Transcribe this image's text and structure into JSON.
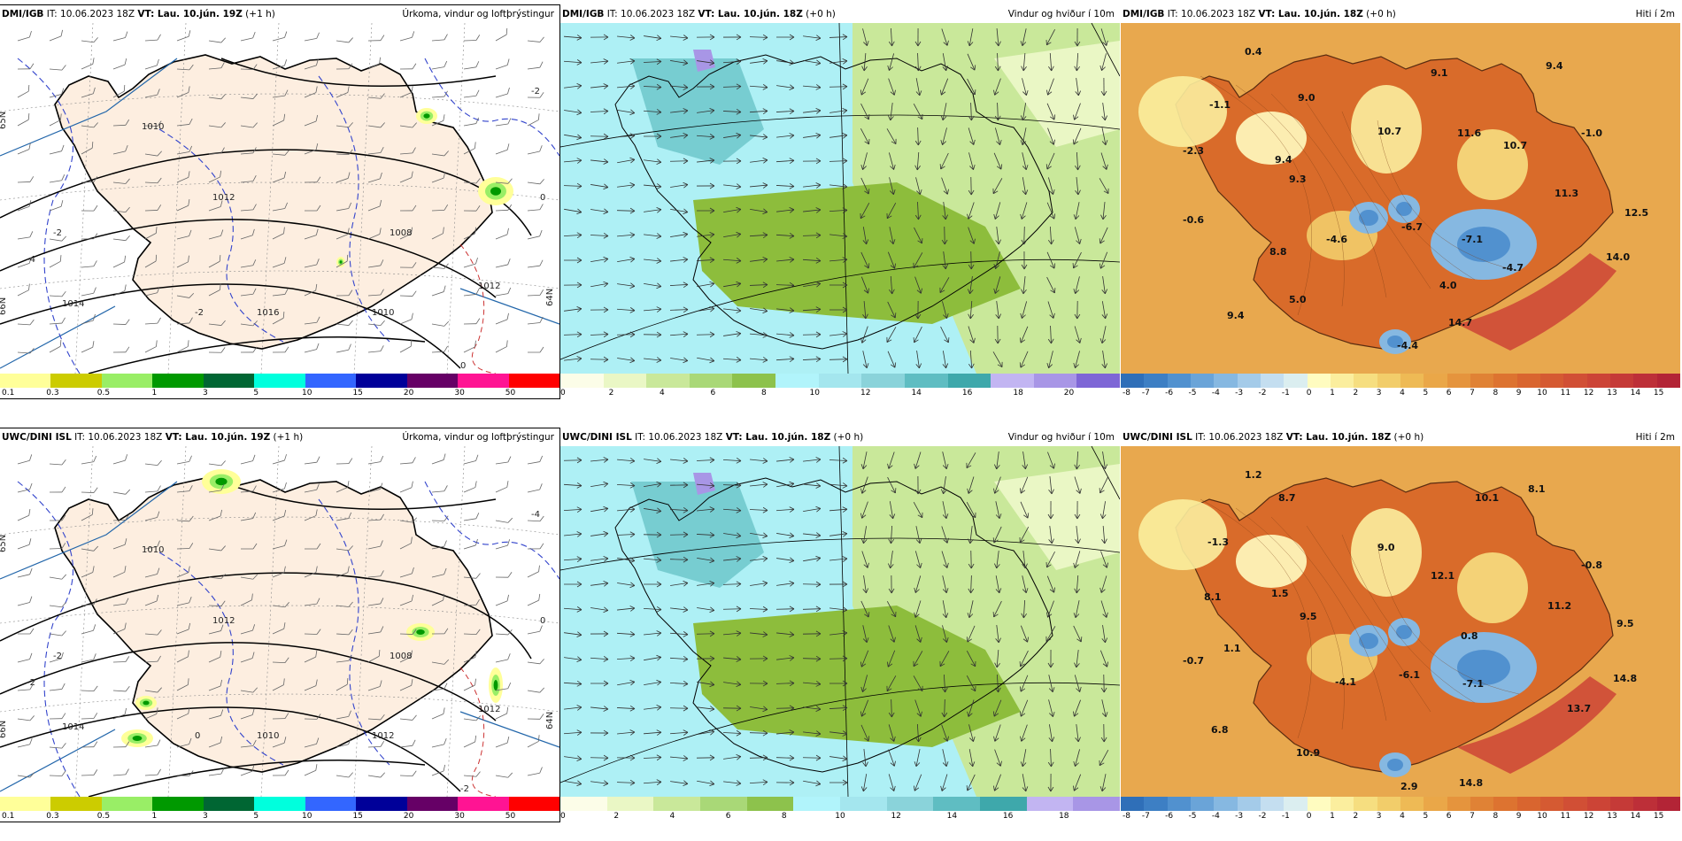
{
  "panels": [
    {
      "id": "dmi-precip",
      "kind": "precip",
      "model": "DMI/IGB",
      "it": "IT: 10.06.2023 18Z",
      "vt": "VT: Lau. 10.jún. 19Z",
      "offset": "(+1 h)",
      "product": "Úrkoma, vindur og loftþrýstingur",
      "isobars": [
        "1010",
        "1012",
        "1014",
        "1016",
        "1008",
        "1010",
        "1012"
      ],
      "dashed_labels": [
        "-2",
        "-2",
        "-4",
        "-2",
        "0",
        "0"
      ],
      "lat_labels": [
        "65N",
        "64N",
        "66N"
      ]
    },
    {
      "id": "dmi-wind",
      "kind": "wind",
      "model": "DMI/IGB",
      "it": "IT: 10.06.2023 18Z",
      "vt": "VT: Lau. 10.jún. 18Z",
      "offset": "(+0 h)",
      "product": "Vindur og hviður í 10m"
    },
    {
      "id": "dmi-temp",
      "kind": "temp",
      "model": "DMI/IGB",
      "it": "IT: 10.06.2023 18Z",
      "vt": "VT: Lau. 10.jún. 18Z",
      "offset": "(+0 h)",
      "product": "Hiti í 2m",
      "values": [
        "0.4",
        "9.1",
        "9.4",
        "-1.1",
        "9.0",
        "10.7",
        "11.6",
        "10.7",
        "-1.0",
        "-2.3",
        "9.4",
        "9.3",
        "11.3",
        "-0.6",
        "-4.6",
        "-6.7",
        "-7.1",
        "12.5",
        "8.8",
        "-4.7",
        "14.0",
        "4.0",
        "5.0",
        "9.4",
        "14.7",
        "-4.4"
      ]
    },
    {
      "id": "uwc-precip",
      "kind": "precip",
      "model": "UWC/DINI ISL",
      "it": "IT: 10.06.2023 18Z",
      "vt": "VT: Lau. 10.jún. 19Z",
      "offset": "(+1 h)",
      "product": "Úrkoma, vindur og loftþrýstingur",
      "isobars": [
        "1010",
        "1012",
        "1014",
        "1010",
        "1008",
        "1012",
        "1012"
      ],
      "dashed_labels": [
        "-4",
        "-2",
        "-2",
        "0",
        "0",
        "-2"
      ],
      "lat_labels": [
        "65N",
        "64N",
        "66N"
      ]
    },
    {
      "id": "uwc-wind",
      "kind": "wind",
      "model": "UWC/DINI ISL",
      "it": "IT: 10.06.2023 18Z",
      "vt": "VT: Lau. 10.jún. 18Z",
      "offset": "(+0 h)",
      "product": "Vindur og hviður í 10m"
    },
    {
      "id": "uwc-temp",
      "kind": "temp",
      "model": "UWC/DINI ISL",
      "it": "IT: 10.06.2023 18Z",
      "vt": "VT: Lau. 10.jún. 18Z",
      "offset": "(+0 h)",
      "product": "Hiti í 2m",
      "values": [
        "1.2",
        "8.7",
        "10.1",
        "8.1",
        "-1.3",
        "9.0",
        "12.1",
        "-0.8",
        "8.1",
        "1.5",
        "9.5",
        "11.2",
        "0.8",
        "9.5",
        "1.1",
        "-0.7",
        "-4.1",
        "-6.1",
        "-7.1",
        "14.8",
        "6.8",
        "13.7",
        "10.9",
        "14.8",
        "2.9"
      ]
    }
  ],
  "colorbars": {
    "precip": {
      "colors": [
        "#ffff99",
        "#cccc00",
        "#99ee66",
        "#009900",
        "#006633",
        "#00ffdd",
        "#3366ff",
        "#000099",
        "#660066",
        "#ff1493",
        "#ff0000"
      ],
      "ticks": [
        "0.1",
        "0.3",
        "0.5",
        "1",
        "3",
        "5",
        "10",
        "15",
        "20",
        "30",
        "50"
      ]
    },
    "wind_dmi": {
      "colors": [
        "#fcfde8",
        "#eaf7c5",
        "#c9e89a",
        "#a9d877",
        "#8dc24c",
        "#b1f4fb",
        "#a4e6ee",
        "#8ad3da",
        "#5fbdc2",
        "#3ea8ab",
        "#c2b5f2",
        "#a896e6",
        "#7e66d6"
      ],
      "ticks": [
        "0",
        "2",
        "4",
        "6",
        "8",
        "10",
        "12",
        "14",
        "16",
        "18",
        "20"
      ]
    },
    "wind_uwc": {
      "colors": [
        "#fcfde8",
        "#eaf7c5",
        "#c9e89a",
        "#a9d877",
        "#8dc24c",
        "#b1f4fb",
        "#a4e6ee",
        "#8ad3da",
        "#5fbdc2",
        "#3ea8ab",
        "#c2b5f2",
        "#a896e6"
      ],
      "ticks": [
        "0",
        "2",
        "4",
        "6",
        "8",
        "10",
        "12",
        "14",
        "16",
        "18"
      ]
    },
    "temp": {
      "colors": [
        "#2f6fb8",
        "#3d7fc4",
        "#5191cf",
        "#6aa4d8",
        "#86b8e1",
        "#a4cbe9",
        "#c4def0",
        "#dbeef0",
        "#fffcc0",
        "#fbee9e",
        "#f6de80",
        "#f2cd6a",
        "#eeba55",
        "#eaa748",
        "#e5943d",
        "#e08235",
        "#dd7330",
        "#d9652f",
        "#d55a32",
        "#d14f35",
        "#cc4436",
        "#c53a37",
        "#bd2f38",
        "#b32436"
      ],
      "ticks": [
        "-8",
        "-7",
        "-6",
        "-5",
        "-4",
        "-3",
        "-2",
        "-1",
        "0",
        "1",
        "2",
        "3",
        "4",
        "5",
        "6",
        "7",
        "8",
        "9",
        "10",
        "11",
        "12",
        "13",
        "14",
        "15"
      ]
    }
  },
  "colors": {
    "land_precip": "#fdeee0",
    "sea_precip": "#ffffff",
    "isobar": "#000000",
    "dashed_temp": "#3344cc",
    "wind_sea": "#aef0f5",
    "wind_land": "#8dbd3c",
    "temp_sea": "#e8a84e",
    "temp_land": "#d96b2a"
  }
}
